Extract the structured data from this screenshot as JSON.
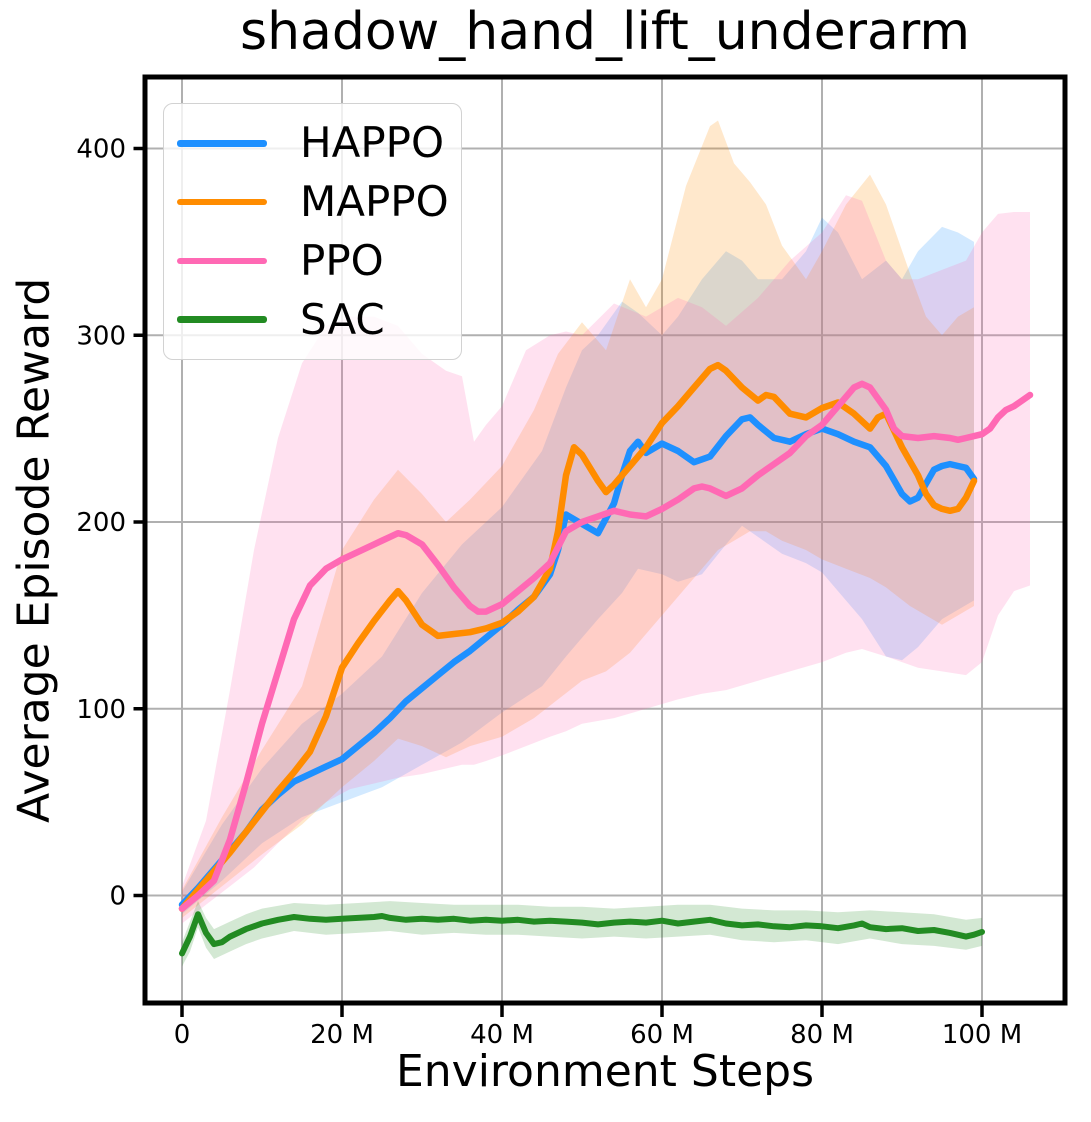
{
  "chart": {
    "title": "shadow_hand_lift_underarm",
    "xlabel": "Environment Steps",
    "ylabel": "Average Episode Reward"
  },
  "chart_data": {
    "type": "line",
    "title": "shadow_hand_lift_underarm",
    "xlabel": "Environment Steps",
    "ylabel": "Average Episode Reward",
    "x_unit": "millions of environment steps",
    "xlim": [
      -4.6,
      110.5
    ],
    "ylim": [
      -58,
      439
    ],
    "grid": true,
    "legend_position": "upper left",
    "style": {
      "grid_color": "#b0b0b0",
      "spine_color": "#000000",
      "band_opacity": 0.2,
      "background": "#ffffff"
    },
    "x_ticks": [
      {
        "value": 0,
        "label": "0"
      },
      {
        "value": 20,
        "label": "20 M"
      },
      {
        "value": 40,
        "label": "40 M"
      },
      {
        "value": 60,
        "label": "60 M"
      },
      {
        "value": 80,
        "label": "80 M"
      },
      {
        "value": 100,
        "label": "100 M"
      }
    ],
    "y_ticks": [
      {
        "value": 0,
        "label": "0"
      },
      {
        "value": 100,
        "label": "100"
      },
      {
        "value": 200,
        "label": "200"
      },
      {
        "value": 300,
        "label": "300"
      },
      {
        "value": 400,
        "label": "400"
      }
    ],
    "series": [
      {
        "name": "HAPPO",
        "color": "#1E90FF",
        "x": [
          0,
          2,
          4,
          6,
          8,
          10,
          12,
          14,
          16,
          18,
          20,
          22,
          24,
          26,
          28,
          30,
          32,
          34,
          36,
          38,
          40,
          42,
          44,
          46,
          47,
          48,
          50,
          52,
          54,
          55,
          56,
          57,
          58,
          60,
          62,
          64,
          66,
          68,
          70,
          71,
          72,
          74,
          76,
          78,
          80,
          82,
          84,
          86,
          88,
          90,
          91,
          92,
          94,
          95,
          96,
          97,
          98,
          99
        ],
        "y": [
          -5,
          4,
          14,
          24,
          34,
          46,
          54,
          61,
          65,
          69,
          73,
          80,
          87,
          95,
          104,
          111,
          118,
          125,
          131,
          138,
          145,
          153,
          160,
          172,
          185,
          204,
          199,
          194,
          210,
          225,
          238,
          243,
          237,
          242,
          238,
          232,
          235,
          246,
          255,
          256,
          252,
          245,
          243,
          247,
          250,
          247,
          243,
          240,
          230,
          215,
          211,
          213,
          228,
          230,
          231,
          230,
          229,
          223
        ],
        "band": {
          "x": [
            0,
            5,
            10,
            15,
            20,
            25,
            30,
            35,
            40,
            45,
            48,
            50,
            52,
            55,
            57,
            60,
            62,
            65,
            68,
            70,
            72,
            75,
            78,
            80,
            82,
            85,
            88,
            90,
            92,
            95,
            97,
            99
          ],
          "lo": [
            -10,
            8,
            28,
            42,
            50,
            58,
            70,
            82,
            98,
            112,
            128,
            138,
            148,
            162,
            175,
            172,
            168,
            172,
            188,
            198,
            192,
            183,
            178,
            173,
            163,
            148,
            128,
            126,
            133,
            148,
            153,
            158
          ],
          "hi": [
            2,
            38,
            68,
            92,
            108,
            128,
            162,
            188,
            208,
            238,
            272,
            292,
            300,
            318,
            312,
            300,
            310,
            330,
            345,
            340,
            330,
            330,
            345,
            363,
            355,
            330,
            340,
            330,
            345,
            358,
            355,
            350
          ]
        }
      },
      {
        "name": "MAPPO",
        "color": "#FF8C00",
        "x": [
          0,
          2,
          4,
          6,
          8,
          10,
          12,
          14,
          16,
          18,
          20,
          22,
          24,
          26,
          27,
          28,
          30,
          32,
          34,
          36,
          38,
          40,
          42,
          44,
          46,
          47,
          48,
          49,
          50,
          52,
          53,
          54,
          56,
          58,
          60,
          62,
          64,
          66,
          67,
          68,
          70,
          72,
          73,
          74,
          76,
          78,
          80,
          82,
          84,
          86,
          87,
          88,
          90,
          92,
          93,
          94,
          95,
          96,
          97,
          98,
          99
        ],
        "y": [
          -7,
          3,
          13,
          23,
          34,
          45,
          56,
          66,
          77,
          96,
          122,
          135,
          147,
          158,
          163,
          158,
          145,
          139,
          140,
          141,
          143,
          146,
          152,
          160,
          175,
          195,
          225,
          240,
          236,
          222,
          216,
          220,
          230,
          240,
          253,
          262,
          272,
          282,
          284,
          281,
          272,
          265,
          268,
          267,
          258,
          256,
          261,
          264,
          258,
          250,
          256,
          258,
          240,
          225,
          215,
          209,
          207,
          206,
          207,
          213,
          222
        ],
        "band": {
          "x": [
            0,
            5,
            10,
            15,
            20,
            24,
            27,
            30,
            33,
            36,
            40,
            44,
            47,
            50,
            53,
            56,
            58,
            60,
            63,
            66,
            67,
            69,
            71,
            73,
            75,
            78,
            80,
            83,
            86,
            88,
            91,
            93,
            95,
            97,
            99
          ],
          "lo": [
            -12,
            5,
            22,
            38,
            58,
            72,
            84,
            80,
            74,
            80,
            85,
            95,
            105,
            115,
            120,
            130,
            140,
            150,
            165,
            180,
            185,
            190,
            195,
            195,
            190,
            185,
            180,
            175,
            170,
            165,
            155,
            150,
            145,
            150,
            155
          ],
          "hi": [
            3,
            42,
            78,
            112,
            185,
            212,
            228,
            215,
            200,
            212,
            230,
            260,
            290,
            307,
            292,
            330,
            315,
            330,
            380,
            412,
            415,
            392,
            382,
            370,
            348,
            330,
            345,
            370,
            386,
            370,
            333,
            310,
            300,
            310,
            315
          ]
        }
      },
      {
        "name": "PPO",
        "color": "#FF69B4",
        "x": [
          0,
          2,
          4,
          6,
          8,
          10,
          12,
          14,
          16,
          18,
          20,
          22,
          24,
          26,
          27,
          28,
          30,
          32,
          34,
          36,
          37,
          38,
          40,
          42,
          44,
          46,
          48,
          50,
          52,
          54,
          56,
          58,
          60,
          62,
          64,
          65,
          66,
          68,
          70,
          72,
          74,
          76,
          78,
          80,
          82,
          84,
          85,
          86,
          88,
          89,
          90,
          92,
          94,
          96,
          97,
          98,
          100,
          101,
          102,
          103,
          104,
          105,
          106
        ],
        "y": [
          -7,
          0,
          8,
          30,
          60,
          92,
          120,
          148,
          166,
          175,
          180,
          184,
          188,
          192,
          194,
          193,
          188,
          177,
          165,
          155,
          152,
          152,
          156,
          163,
          170,
          178,
          195,
          200,
          203,
          206,
          204,
          203,
          207,
          212,
          218,
          219,
          218,
          214,
          218,
          225,
          231,
          237,
          246,
          252,
          262,
          272,
          274,
          272,
          260,
          250,
          246,
          245,
          246,
          245,
          244,
          245,
          247,
          250,
          256,
          260,
          262,
          265,
          268
        ],
        "band": {
          "x": [
            0,
            3,
            6,
            9,
            12,
            15,
            18,
            21,
            24,
            27,
            30,
            33,
            35,
            36.5,
            38,
            40,
            43,
            46,
            48,
            50,
            54,
            58,
            62,
            65,
            68,
            72,
            76,
            80,
            83,
            85,
            88,
            90,
            92,
            95,
            98,
            100,
            102,
            104,
            106
          ],
          "lo": [
            -15,
            -5,
            5,
            15,
            28,
            40,
            50,
            57,
            60,
            63,
            65,
            68,
            70,
            70,
            72,
            75,
            80,
            85,
            88,
            92,
            95,
            100,
            105,
            108,
            110,
            115,
            120,
            125,
            130,
            132,
            128,
            125,
            122,
            120,
            118,
            125,
            150,
            163,
            166
          ],
          "hi": [
            5,
            40,
            110,
            185,
            245,
            285,
            305,
            310,
            310,
            305,
            290,
            281,
            278,
            243,
            252,
            262,
            292,
            300,
            302,
            300,
            317,
            310,
            320,
            315,
            305,
            320,
            340,
            355,
            375,
            372,
            340,
            330,
            330,
            335,
            340,
            355,
            365,
            366,
            366
          ]
        }
      },
      {
        "name": "SAC",
        "color": "#228B22",
        "x": [
          0,
          1,
          2,
          3,
          4,
          5,
          6,
          8,
          10,
          12,
          14,
          16,
          18,
          20,
          22,
          24,
          25,
          26,
          28,
          30,
          32,
          34,
          36,
          38,
          40,
          42,
          44,
          46,
          48,
          50,
          52,
          54,
          56,
          58,
          60,
          62,
          64,
          66,
          68,
          70,
          72,
          74,
          76,
          78,
          80,
          82,
          84,
          85,
          86,
          88,
          90,
          92,
          94,
          96,
          98,
          99,
          100
        ],
        "y": [
          -31,
          -22,
          -10,
          -20,
          -26,
          -25,
          -22,
          -18,
          -15,
          -13,
          -11.5,
          -12.5,
          -13,
          -12.5,
          -12,
          -11.5,
          -11,
          -12,
          -13,
          -12.5,
          -13,
          -12.5,
          -13.5,
          -13,
          -13.5,
          -13,
          -14,
          -13.5,
          -14,
          -14.5,
          -15.5,
          -14.5,
          -14,
          -14.5,
          -13.5,
          -15,
          -14,
          -13,
          -15,
          -16,
          -15.5,
          -16.5,
          -17,
          -16,
          -16.5,
          -17.5,
          -16,
          -15,
          -17,
          -18,
          -17.5,
          -19,
          -18.5,
          -20,
          -22,
          -21,
          -19.5
        ],
        "band": {
          "x": [
            0,
            1,
            2,
            3,
            4,
            6,
            8,
            10,
            14,
            18,
            22,
            26,
            30,
            34,
            38,
            42,
            46,
            50,
            54,
            58,
            62,
            66,
            70,
            74,
            78,
            82,
            86,
            90,
            94,
            98,
            100
          ],
          "lo": [
            -38,
            -30,
            -17,
            -28,
            -34,
            -30,
            -26,
            -23,
            -19,
            -21,
            -20,
            -19,
            -21,
            -20,
            -21,
            -21,
            -22,
            -23,
            -22,
            -23,
            -22,
            -21,
            -24,
            -25,
            -24,
            -26,
            -23,
            -26,
            -27,
            -29,
            -27
          ],
          "hi": [
            -25,
            -14,
            -3,
            -12,
            -18,
            -14,
            -10,
            -7,
            -4,
            -5,
            -4,
            -3,
            -4,
            -5,
            -5,
            -5,
            -6,
            -6,
            -7,
            -6,
            -5,
            -5,
            -7,
            -8,
            -8,
            -9,
            -8,
            -9,
            -10,
            -13,
            -12
          ]
        }
      }
    ]
  }
}
